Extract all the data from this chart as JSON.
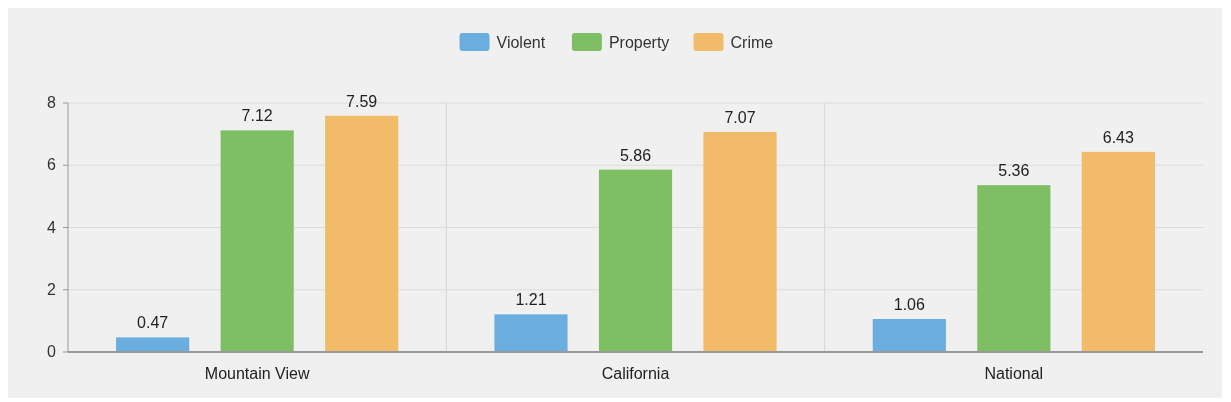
{
  "chart_data": {
    "type": "bar",
    "categories": [
      "Mountain View",
      "California",
      "National"
    ],
    "series": [
      {
        "name": "Violent",
        "color": "#6aaee0",
        "values": [
          0.47,
          1.21,
          1.06
        ]
      },
      {
        "name": "Property",
        "color": "#7fbf63",
        "values": [
          7.12,
          5.86,
          5.36
        ]
      },
      {
        "name": "Crime",
        "color": "#f2bb69",
        "values": [
          7.59,
          7.07,
          6.43
        ]
      }
    ],
    "ylim": [
      0,
      8
    ],
    "yticks": [
      0,
      2,
      4,
      6,
      8
    ],
    "grid": true,
    "legend": "top",
    "data_labels": true
  }
}
